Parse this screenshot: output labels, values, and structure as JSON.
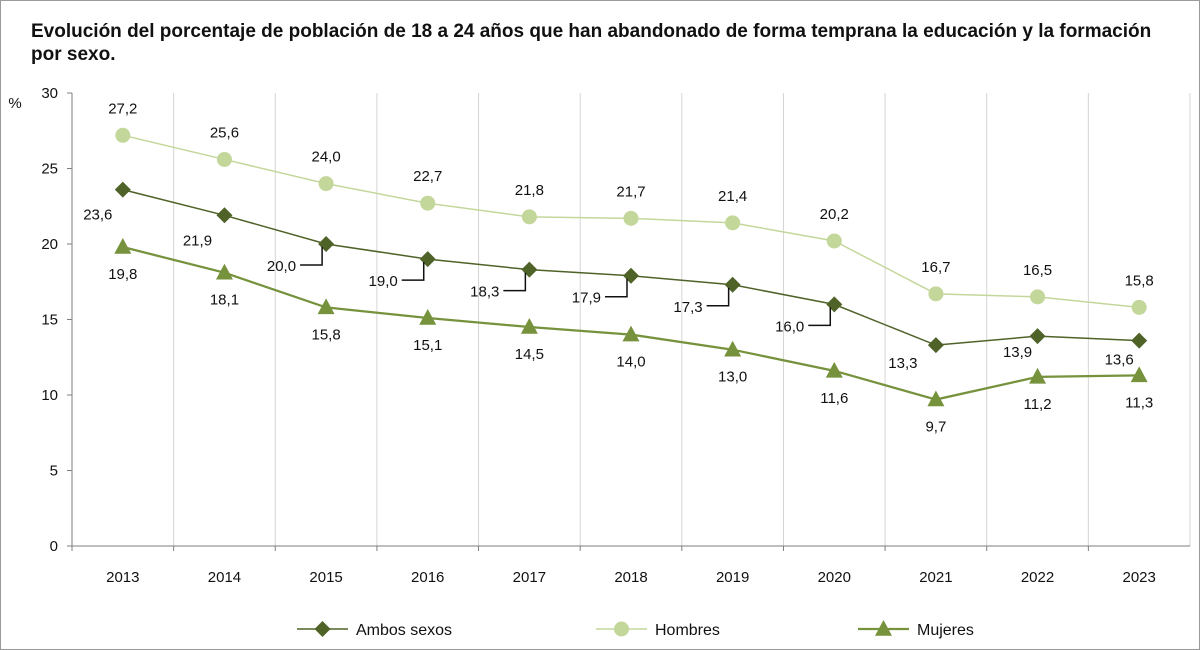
{
  "title": "Evolución del porcentaje de población de 18 a 24 años que han abandonado de forma temprana  la educación y la formación por sexo.",
  "chart_data": {
    "type": "line",
    "title": "Evolución del porcentaje de población de 18 a 24 años que han abandonado de forma temprana  la educación y la formación por sexo.",
    "y_unit": "%",
    "xlabel": "",
    "ylabel": "",
    "ylim": [
      0,
      30
    ],
    "yticks": [
      "0",
      "5",
      "10",
      "15",
      "20",
      "25",
      "30"
    ],
    "categories": [
      "2013",
      "2014",
      "2015",
      "2016",
      "2017",
      "2018",
      "2019",
      "2020",
      "2021",
      "2022",
      "2023"
    ],
    "grid": "vertical",
    "legend": "bottom",
    "series": [
      {
        "name": "Ambos sexos",
        "marker": "diamond",
        "color": "#4f6228",
        "values": [
          23.6,
          21.9,
          20.0,
          19.0,
          18.3,
          17.9,
          17.3,
          16.0,
          13.3,
          13.9,
          13.6
        ],
        "labels": [
          "23,6",
          "21,9",
          "20,0",
          "19,0",
          "18,3",
          "17,9",
          "17,3",
          "16,0",
          "13,3",
          "13,9",
          "13,6"
        ]
      },
      {
        "name": "Hombres",
        "marker": "circle",
        "color": "#c4d79b",
        "values": [
          27.2,
          25.6,
          24.0,
          22.7,
          21.8,
          21.7,
          21.4,
          20.2,
          16.7,
          16.5,
          15.8
        ],
        "labels": [
          "27,2",
          "25,6",
          "24,0",
          "22,7",
          "21,8",
          "21,7",
          "21,4",
          "20,2",
          "16,7",
          "16,5",
          "15,8"
        ]
      },
      {
        "name": "Mujeres",
        "marker": "triangle",
        "color": "#76923c",
        "values": [
          19.8,
          18.1,
          15.8,
          15.1,
          14.5,
          14.0,
          13.0,
          11.6,
          9.7,
          11.2,
          11.3
        ],
        "labels": [
          "19,8",
          "18,1",
          "15,8",
          "15,1",
          "14,5",
          "14,0",
          "13,0",
          "11,6",
          "9,7",
          "11,2",
          "11,3"
        ]
      }
    ]
  }
}
